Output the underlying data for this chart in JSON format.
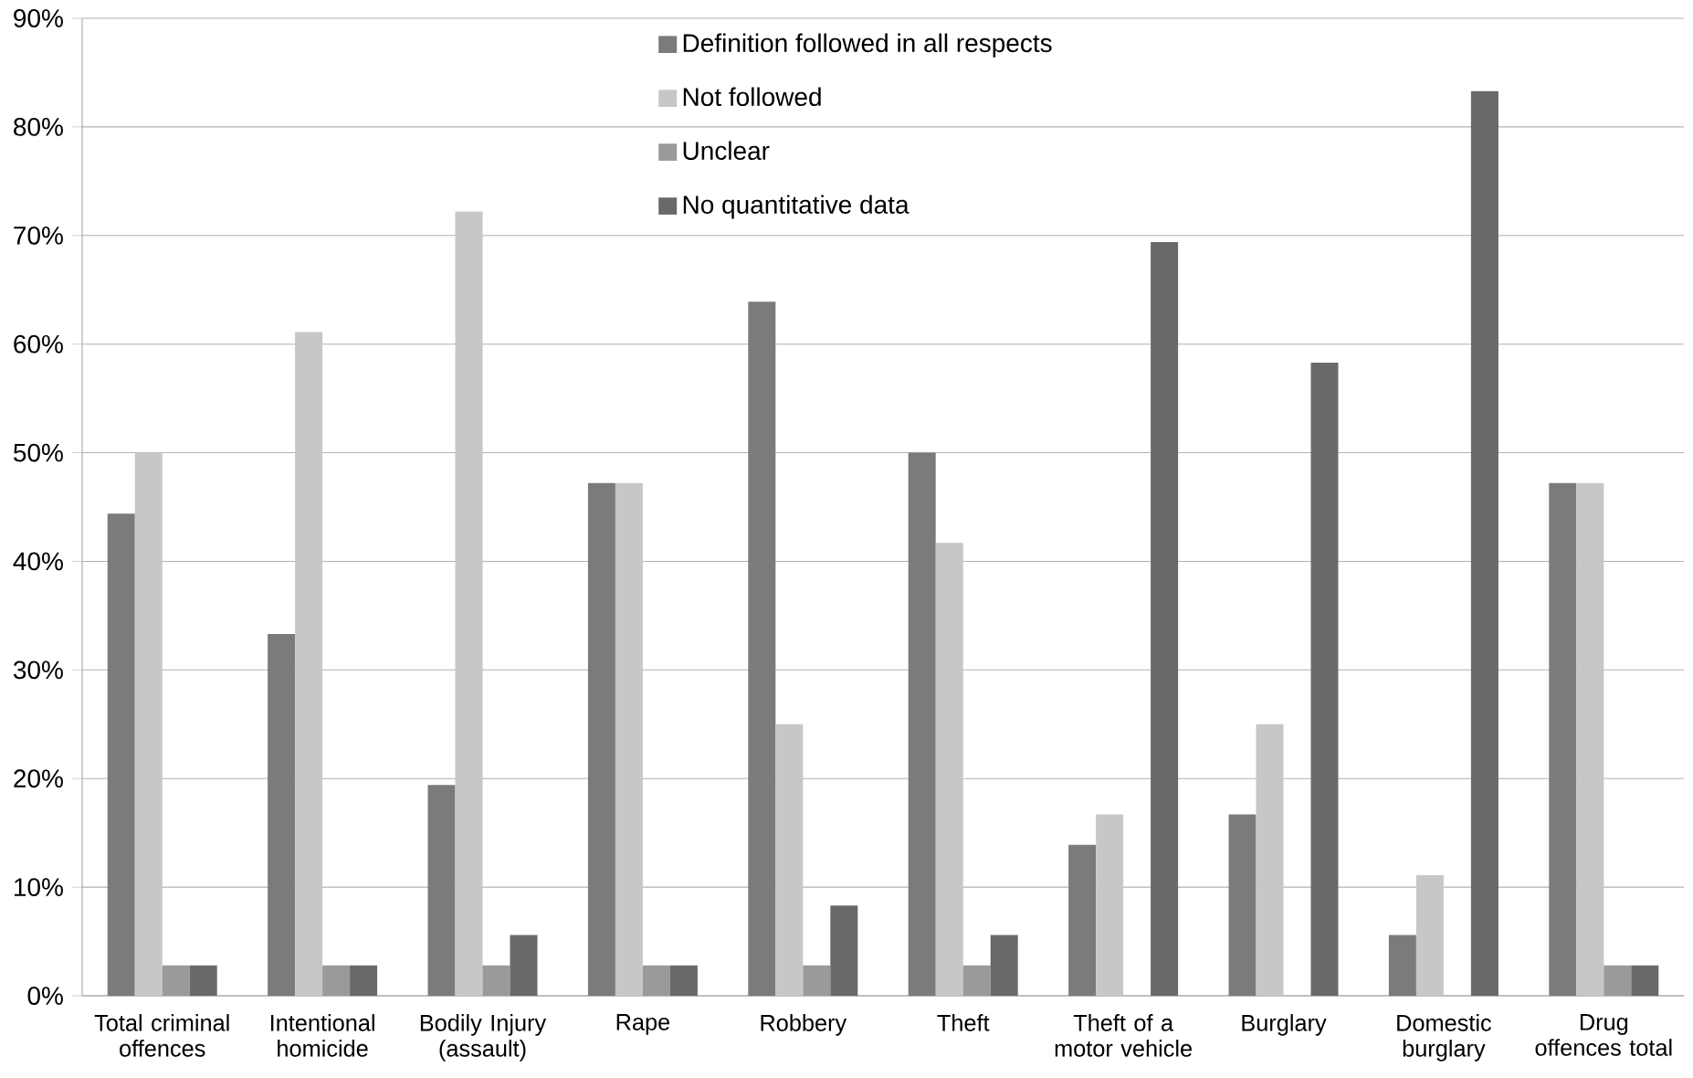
{
  "chart_data": {
    "type": "bar",
    "categories": [
      "Total criminal offences",
      "Intentional homicide",
      "Bodily Injury (assault)",
      "Rape",
      "Robbery",
      "Theft",
      "Theft of a motor vehicle",
      "Burglary",
      "Domestic burglary",
      "Drug offences total"
    ],
    "series": [
      {
        "name": "Definition followed in all respects",
        "color": "#7b7b7b",
        "values": [
          44.4,
          33.3,
          19.4,
          47.2,
          63.9,
          50,
          13.9,
          16.7,
          5.6,
          47.2
        ]
      },
      {
        "name": "Not followed",
        "color": "#c6c7c6",
        "values": [
          50,
          61.1,
          72.2,
          47.2,
          25,
          41.7,
          16.7,
          25,
          11.1,
          47.2
        ]
      },
      {
        "name": "Unclear",
        "color": "#9a9a9a",
        "values": [
          2.8,
          2.8,
          2.8,
          2.8,
          2.8,
          2.8,
          0,
          0,
          0,
          2.8
        ]
      },
      {
        "name": "No quantitative data",
        "color": "#696969",
        "values": [
          2.8,
          2.8,
          5.6,
          2.8,
          8.3,
          5.6,
          69.4,
          58.3,
          83.3,
          2.8
        ]
      }
    ],
    "ylim": [
      0,
      90
    ],
    "yticks": [
      {
        "value": 0,
        "label": "0%"
      },
      {
        "value": 10,
        "label": "10%"
      },
      {
        "value": 20,
        "label": "20%"
      },
      {
        "value": 30,
        "label": "30%"
      },
      {
        "value": 40,
        "label": "40%"
      },
      {
        "value": 50,
        "label": "50%"
      },
      {
        "value": 60,
        "label": "60%"
      },
      {
        "value": 70,
        "label": "70%"
      },
      {
        "value": 80,
        "label": "80%"
      },
      {
        "value": 90,
        "label": "90%"
      }
    ],
    "grid": "y",
    "legend": "top"
  }
}
